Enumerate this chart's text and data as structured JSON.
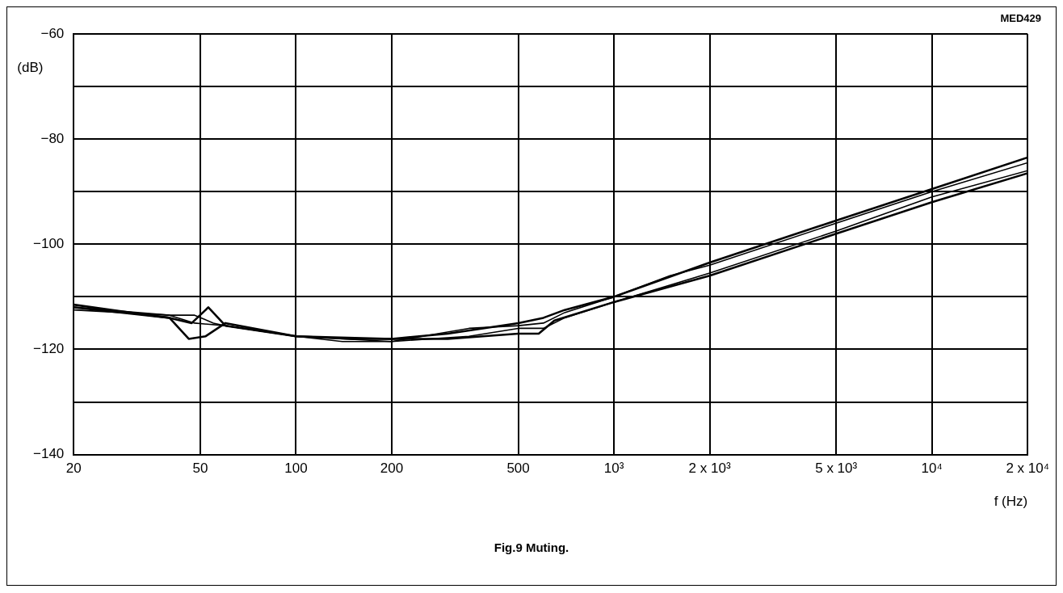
{
  "chart_data": {
    "type": "line",
    "xlabel": "f (Hz)",
    "ylabel": "(dB)",
    "log": "x",
    "grid": true,
    "legend": false,
    "marker": "none",
    "line_style": "solid",
    "xlim": [
      20,
      20000
    ],
    "ylim": [
      -140,
      -60
    ],
    "xticks": [
      20,
      50,
      100,
      200,
      500,
      {
        "value": 1000,
        "label": "10³"
      },
      {
        "value": 2000,
        "label": "2 x 10³"
      },
      {
        "value": 5000,
        "label": "5 x 10³"
      },
      {
        "value": 10000,
        "label": "10⁴"
      },
      {
        "value": 20000,
        "label": "2 x 10⁴"
      }
    ],
    "yticks": [
      -140,
      {
        "value": -130,
        "label": null
      },
      -120,
      {
        "value": -110,
        "label": null
      },
      -100,
      {
        "value": -90,
        "label": null
      },
      -80,
      {
        "value": -70,
        "label": null
      },
      -60
    ],
    "series": [
      {
        "color": "#000000",
        "x": [
          20,
          30,
          40,
          47,
          53,
          60,
          100,
          150,
          200,
          300,
          500,
          600,
          700,
          1000,
          2000,
          5000,
          10000,
          20000
        ],
        "values": [
          -111.5,
          -113,
          -114,
          -115,
          -112,
          -115.5,
          -117.5,
          -118,
          -118,
          -117,
          -115,
          -114,
          -112.5,
          -110,
          -103.5,
          -95.5,
          -89.5,
          -83.5
        ]
      },
      {
        "color": "#000000",
        "x": [
          20,
          40,
          48,
          55,
          60,
          100,
          140,
          200,
          350,
          500,
          600,
          700,
          1000,
          1500,
          2000,
          5000,
          10000,
          20000
        ],
        "values": [
          -112.5,
          -113.5,
          -113.5,
          -115,
          -115.5,
          -117.5,
          -118.5,
          -118.5,
          -116,
          -115.5,
          -115,
          -113,
          -110,
          -106,
          -104,
          -96,
          -90,
          -84.5
        ]
      },
      {
        "color": "#000000",
        "x": [
          20,
          40,
          46,
          52,
          60,
          100,
          200,
          300,
          500,
          580,
          650,
          1000,
          2000,
          5000,
          10000,
          20000
        ],
        "values": [
          -112,
          -114,
          -118,
          -117.5,
          -115,
          -117.5,
          -118,
          -118,
          -117,
          -117,
          -114.5,
          -111,
          -106,
          -98,
          -92,
          -86.5
        ]
      },
      {
        "color": "#000000",
        "x": [
          20,
          40,
          48,
          60,
          100,
          200,
          350,
          500,
          600,
          700,
          1000,
          2000,
          5000,
          10000,
          20000
        ],
        "values": [
          -112,
          -113.5,
          -115,
          -115.5,
          -117.5,
          -118.5,
          -117.5,
          -116,
          -116,
          -114,
          -111,
          -105.5,
          -97.5,
          -91,
          -86
        ]
      }
    ],
    "annotations": [
      "MED429",
      "Fig.9 Muting."
    ]
  }
}
